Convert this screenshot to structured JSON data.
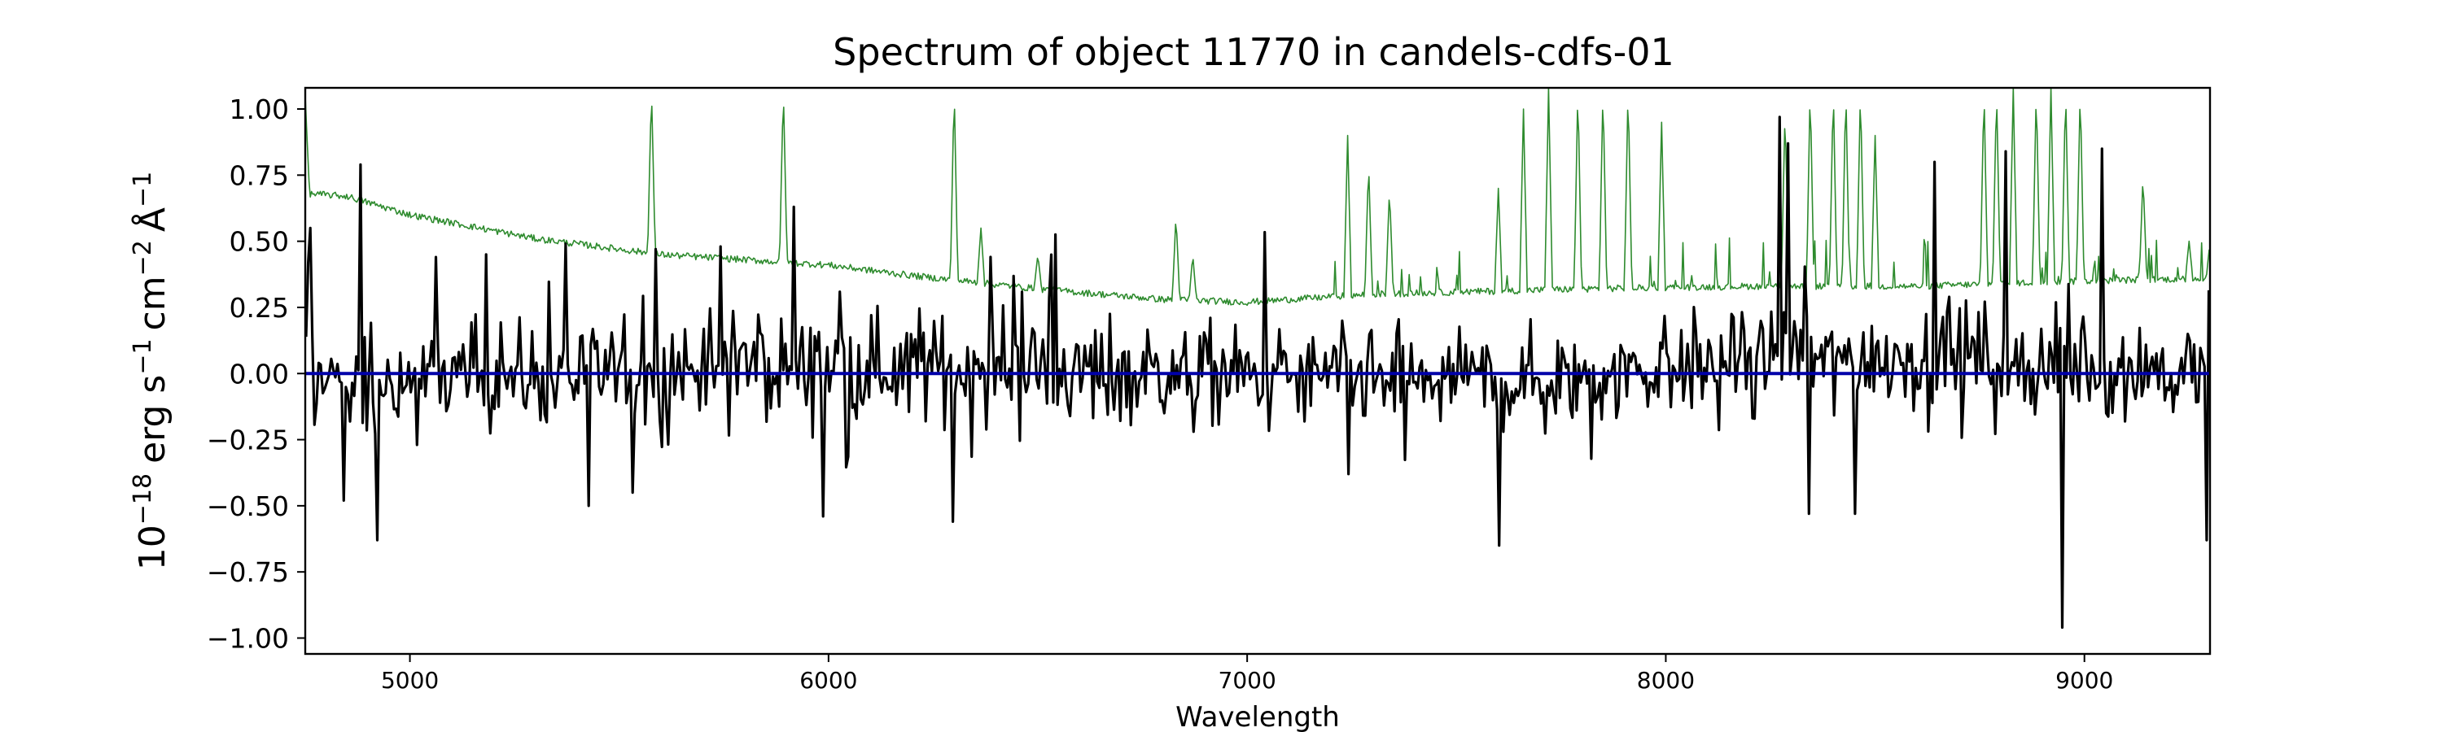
{
  "chart_data": {
    "type": "line",
    "title": "Spectrum of object 11770 in candels-cdfs-01",
    "xlabel": "Wavelength",
    "ylabel_parts": {
      "pre": "10",
      "pre_exp": "−18",
      "unit1": "erg s",
      "unit1_exp": "−1",
      "unit2": "cm",
      "unit2_exp": "−2",
      "unit3": "Å",
      "unit3_exp": "−1"
    },
    "xlim": [
      4750,
      9300
    ],
    "ylim": [
      -1.06,
      1.08
    ],
    "x_ticks": [
      5000,
      6000,
      7000,
      8000,
      9000
    ],
    "x_tick_labels": [
      "5000",
      "6000",
      "7000",
      "8000",
      "9000"
    ],
    "y_ticks": [
      -1.0,
      -0.75,
      -0.5,
      -0.25,
      0.0,
      0.25,
      0.5,
      0.75,
      1.0
    ],
    "y_tick_labels": [
      "−1.00",
      "−0.75",
      "−0.50",
      "−0.25",
      "0.00",
      "0.25",
      "0.50",
      "0.75",
      "1.00"
    ],
    "grid": false,
    "colors": {
      "flux": "#000000",
      "error": "#2e8b2e",
      "zero": "#0000aa"
    },
    "series": [
      {
        "key": "flux",
        "sample_step": 5,
        "noise_scale": 0.24,
        "features": [
          {
            "x": 4760,
            "y": 0.55
          },
          {
            "x": 4882,
            "y": 0.79
          },
          {
            "x": 4920,
            "y": -0.63
          },
          {
            "x": 4840,
            "y": -0.48
          },
          {
            "x": 5060,
            "y": 0.44
          },
          {
            "x": 5180,
            "y": 0.45
          },
          {
            "x": 5428,
            "y": -0.5
          },
          {
            "x": 5530,
            "y": -0.45
          },
          {
            "x": 5585,
            "y": 0.47
          },
          {
            "x": 5740,
            "y": 0.48
          },
          {
            "x": 5915,
            "y": 0.63
          },
          {
            "x": 5985,
            "y": -0.54
          },
          {
            "x": 6295,
            "y": -0.56
          },
          {
            "x": 7240,
            "y": -0.38
          },
          {
            "x": 7600,
            "y": -0.65
          },
          {
            "x": 8270,
            "y": 0.97
          },
          {
            "x": 8290,
            "y": 0.87
          },
          {
            "x": 8340,
            "y": -0.53
          },
          {
            "x": 8450,
            "y": -0.53
          },
          {
            "x": 8640,
            "y": 0.8
          },
          {
            "x": 8810,
            "y": 0.84
          },
          {
            "x": 8945,
            "y": -0.96
          },
          {
            "x": 9040,
            "y": 0.85
          },
          {
            "x": 9290,
            "y": -0.63
          },
          {
            "x": 9308,
            "y": -0.33
          }
        ]
      },
      {
        "key": "error",
        "baseline": [
          {
            "x": 4750,
            "y": 1.05
          },
          {
            "x": 4760,
            "y": 0.68
          },
          {
            "x": 4850,
            "y": 0.67
          },
          {
            "x": 5000,
            "y": 0.6
          },
          {
            "x": 5300,
            "y": 0.51
          },
          {
            "x": 5600,
            "y": 0.45
          },
          {
            "x": 6000,
            "y": 0.41
          },
          {
            "x": 6200,
            "y": 0.37
          },
          {
            "x": 6500,
            "y": 0.32
          },
          {
            "x": 6800,
            "y": 0.28
          },
          {
            "x": 7000,
            "y": 0.27
          },
          {
            "x": 7300,
            "y": 0.3
          },
          {
            "x": 7800,
            "y": 0.32
          },
          {
            "x": 8200,
            "y": 0.33
          },
          {
            "x": 8600,
            "y": 0.33
          },
          {
            "x": 9000,
            "y": 0.35
          },
          {
            "x": 9300,
            "y": 0.36
          }
        ],
        "spikes": [
          {
            "x": 5577,
            "y": 1.08
          },
          {
            "x": 5892,
            "y": 1.08
          },
          {
            "x": 6300,
            "y": 1.08
          },
          {
            "x": 6364,
            "y": 0.55
          },
          {
            "x": 6500,
            "y": 0.45
          },
          {
            "x": 6830,
            "y": 0.6
          },
          {
            "x": 6870,
            "y": 0.45
          },
          {
            "x": 7240,
            "y": 0.9
          },
          {
            "x": 7290,
            "y": 0.8
          },
          {
            "x": 7340,
            "y": 0.7
          },
          {
            "x": 7600,
            "y": 0.7
          },
          {
            "x": 7660,
            "y": 1.0
          },
          {
            "x": 7720,
            "y": 1.08
          },
          {
            "x": 7790,
            "y": 1.08
          },
          {
            "x": 7850,
            "y": 1.08
          },
          {
            "x": 7910,
            "y": 1.08
          },
          {
            "x": 7990,
            "y": 0.95
          },
          {
            "x": 8285,
            "y": 1.0
          },
          {
            "x": 8345,
            "y": 1.08
          },
          {
            "x": 8400,
            "y": 1.08
          },
          {
            "x": 8430,
            "y": 1.08
          },
          {
            "x": 8465,
            "y": 1.08
          },
          {
            "x": 8500,
            "y": 0.9
          },
          {
            "x": 8760,
            "y": 1.08
          },
          {
            "x": 8790,
            "y": 1.08
          },
          {
            "x": 8830,
            "y": 1.08
          },
          {
            "x": 8885,
            "y": 1.08
          },
          {
            "x": 8920,
            "y": 1.08
          },
          {
            "x": 8955,
            "y": 1.08
          },
          {
            "x": 8990,
            "y": 1.08
          },
          {
            "x": 9140,
            "y": 0.75
          },
          {
            "x": 9250,
            "y": 0.5
          },
          {
            "x": 9300,
            "y": 0.5
          }
        ]
      },
      {
        "key": "zero",
        "y": 0.0
      }
    ]
  }
}
